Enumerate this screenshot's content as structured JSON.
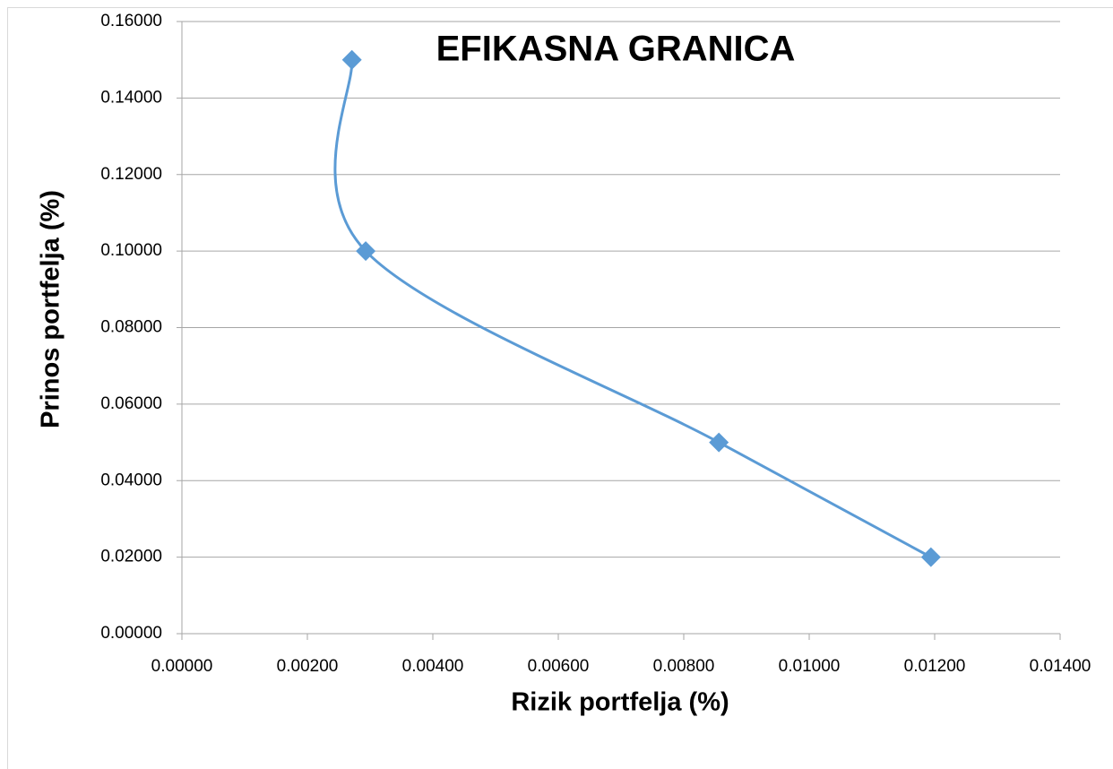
{
  "chart_data": {
    "type": "scatter",
    "title": "EFIKASNA GRANICA",
    "xlabel": "Rizik portfelja (%)",
    "ylabel": "Prinos portfelja (%)",
    "smooth": true,
    "grid": true,
    "series": [
      {
        "color": "#5b9bd5",
        "x": [
          0.00271,
          0.00293,
          0.00856,
          0.01194
        ],
        "values": [
          0.15,
          0.1,
          0.05,
          0.02
        ]
      }
    ],
    "xlim": [
      0,
      0.014
    ],
    "xticks": [
      {
        "value": 0,
        "label": "0.00000"
      },
      {
        "value": 0.002,
        "label": "0.00200"
      },
      {
        "value": 0.004,
        "label": "0.00400"
      },
      {
        "value": 0.006,
        "label": "0.00600"
      },
      {
        "value": 0.008,
        "label": "0.00800"
      },
      {
        "value": 0.01,
        "label": "0.01000"
      },
      {
        "value": 0.012,
        "label": "0.01200"
      },
      {
        "value": 0.014,
        "label": "0.01400"
      }
    ],
    "ylim": [
      0,
      0.16
    ],
    "yticks": [
      {
        "value": 0,
        "label": "0.00000"
      },
      {
        "value": 0.02,
        "label": "0.02000"
      },
      {
        "value": 0.04,
        "label": "0.04000"
      },
      {
        "value": 0.06,
        "label": "0.06000"
      },
      {
        "value": 0.08,
        "label": "0.08000"
      },
      {
        "value": 0.1,
        "label": "0.10000"
      },
      {
        "value": 0.12,
        "label": "0.12000"
      },
      {
        "value": 0.14,
        "label": "0.14000"
      },
      {
        "value": 0.16,
        "label": "0.16000"
      }
    ]
  }
}
